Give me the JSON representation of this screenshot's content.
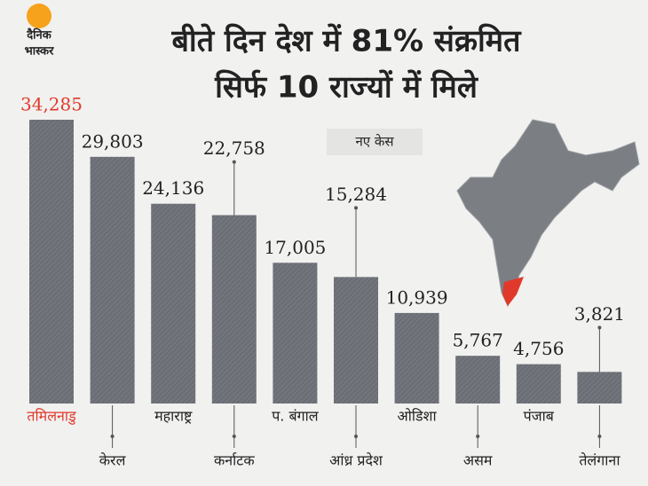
{
  "logo": [
    "दैनिक",
    "भास्कर"
  ],
  "chart_data": {
    "type": "bar",
    "title": [
      "बीते दिन देश में 81% संक्रमित",
      "सिर्फ 10 राज्यों में मिले"
    ],
    "legend": "नए केस",
    "categories": [
      "तमिलनाडु",
      "केरल",
      "महाराष्ट्र",
      "कर्नाटक",
      "प. बंगाल",
      "आंध्र प्रदेश",
      "ओडिशा",
      "असम",
      "पंजाब",
      "तेलंगाना"
    ],
    "values": [
      34285,
      29803,
      24136,
      22758,
      17005,
      15284,
      10939,
      5767,
      4756,
      3821
    ],
    "value_labels": [
      "34,285",
      "29,803",
      "24,136",
      "22,758",
      "17,005",
      "15,284",
      "10,939",
      "5,767",
      "4,756",
      "3,821"
    ],
    "color": "#6b6f75",
    "highlight_index": 0,
    "highlight_color": "#e0392b"
  }
}
